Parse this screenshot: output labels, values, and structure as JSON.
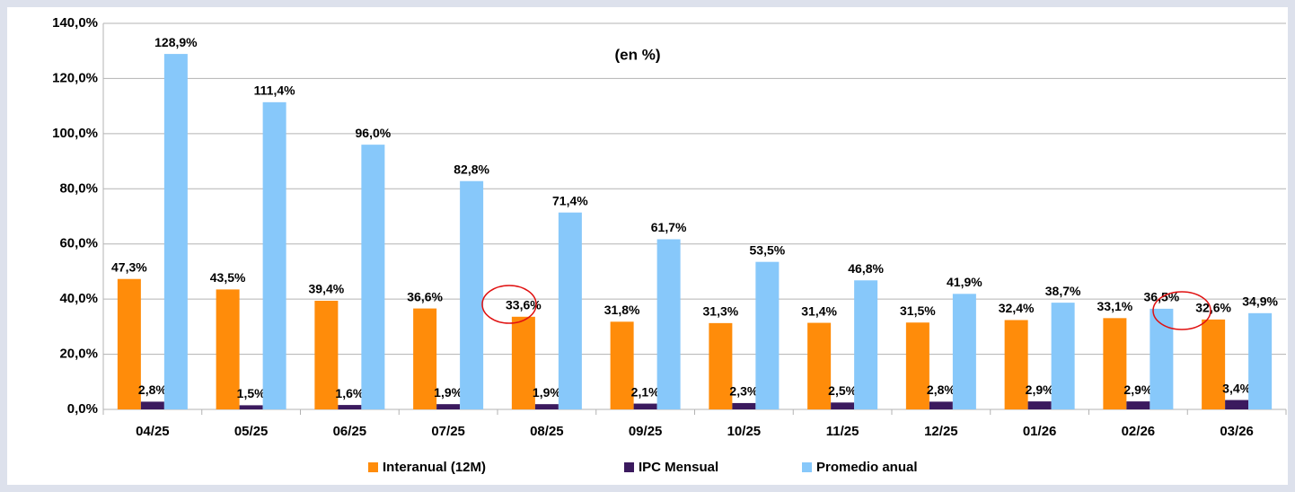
{
  "chart_data": {
    "type": "bar",
    "subtitle": "(en %)",
    "categories": [
      "04/25",
      "05/25",
      "06/25",
      "07/25",
      "08/25",
      "09/25",
      "10/25",
      "11/25",
      "12/25",
      "01/26",
      "02/26",
      "03/26"
    ],
    "series": [
      {
        "name": "Interanual (12M)",
        "color": "#ff8c0a",
        "values": [
          47.3,
          43.5,
          39.4,
          36.6,
          33.6,
          31.8,
          31.3,
          31.4,
          31.5,
          32.4,
          33.1,
          32.6
        ],
        "value_labels": [
          "47,3%",
          "43,5%",
          "39,4%",
          "36,6%",
          "33,6%",
          "31,8%",
          "31,3%",
          "31,4%",
          "31,5%",
          "32,4%",
          "33,1%",
          "32,6%"
        ]
      },
      {
        "name": "IPC Mensual",
        "color": "#3b1a5e",
        "values": [
          2.8,
          1.5,
          1.6,
          1.9,
          1.9,
          2.1,
          2.3,
          2.5,
          2.8,
          2.9,
          2.9,
          3.4
        ],
        "value_labels": [
          "2,8%",
          "1,5%",
          "1,6%",
          "1,9%",
          "1,9%",
          "2,1%",
          "2,3%",
          "2,5%",
          "2,8%",
          "2,9%",
          "2,9%",
          "3,4%"
        ]
      },
      {
        "name": "Promedio anual",
        "color": "#87c8fa",
        "values": [
          128.9,
          111.4,
          96.0,
          82.8,
          71.4,
          61.7,
          53.5,
          46.8,
          41.9,
          38.7,
          36.5,
          34.9
        ],
        "value_labels": [
          "128,9%",
          "111,4%",
          "96,0%",
          "82,8%",
          "71,4%",
          "61,7%",
          "53,5%",
          "46,8%",
          "41,9%",
          "38,7%",
          "36,5%",
          "34,9%"
        ]
      }
    ],
    "ylim": [
      0,
      140
    ],
    "yticks": [
      {
        "value": 0,
        "label": "0,0%"
      },
      {
        "value": 20,
        "label": "20,0%"
      },
      {
        "value": 40,
        "label": "40,0%"
      },
      {
        "value": 60,
        "label": "60,0%"
      },
      {
        "value": 80,
        "label": "80,0%"
      },
      {
        "value": 100,
        "label": "100,0%"
      },
      {
        "value": 120,
        "label": "120,0%"
      },
      {
        "value": 140,
        "label": "140,0%"
      }
    ],
    "grid": true,
    "legend": "bottom"
  }
}
